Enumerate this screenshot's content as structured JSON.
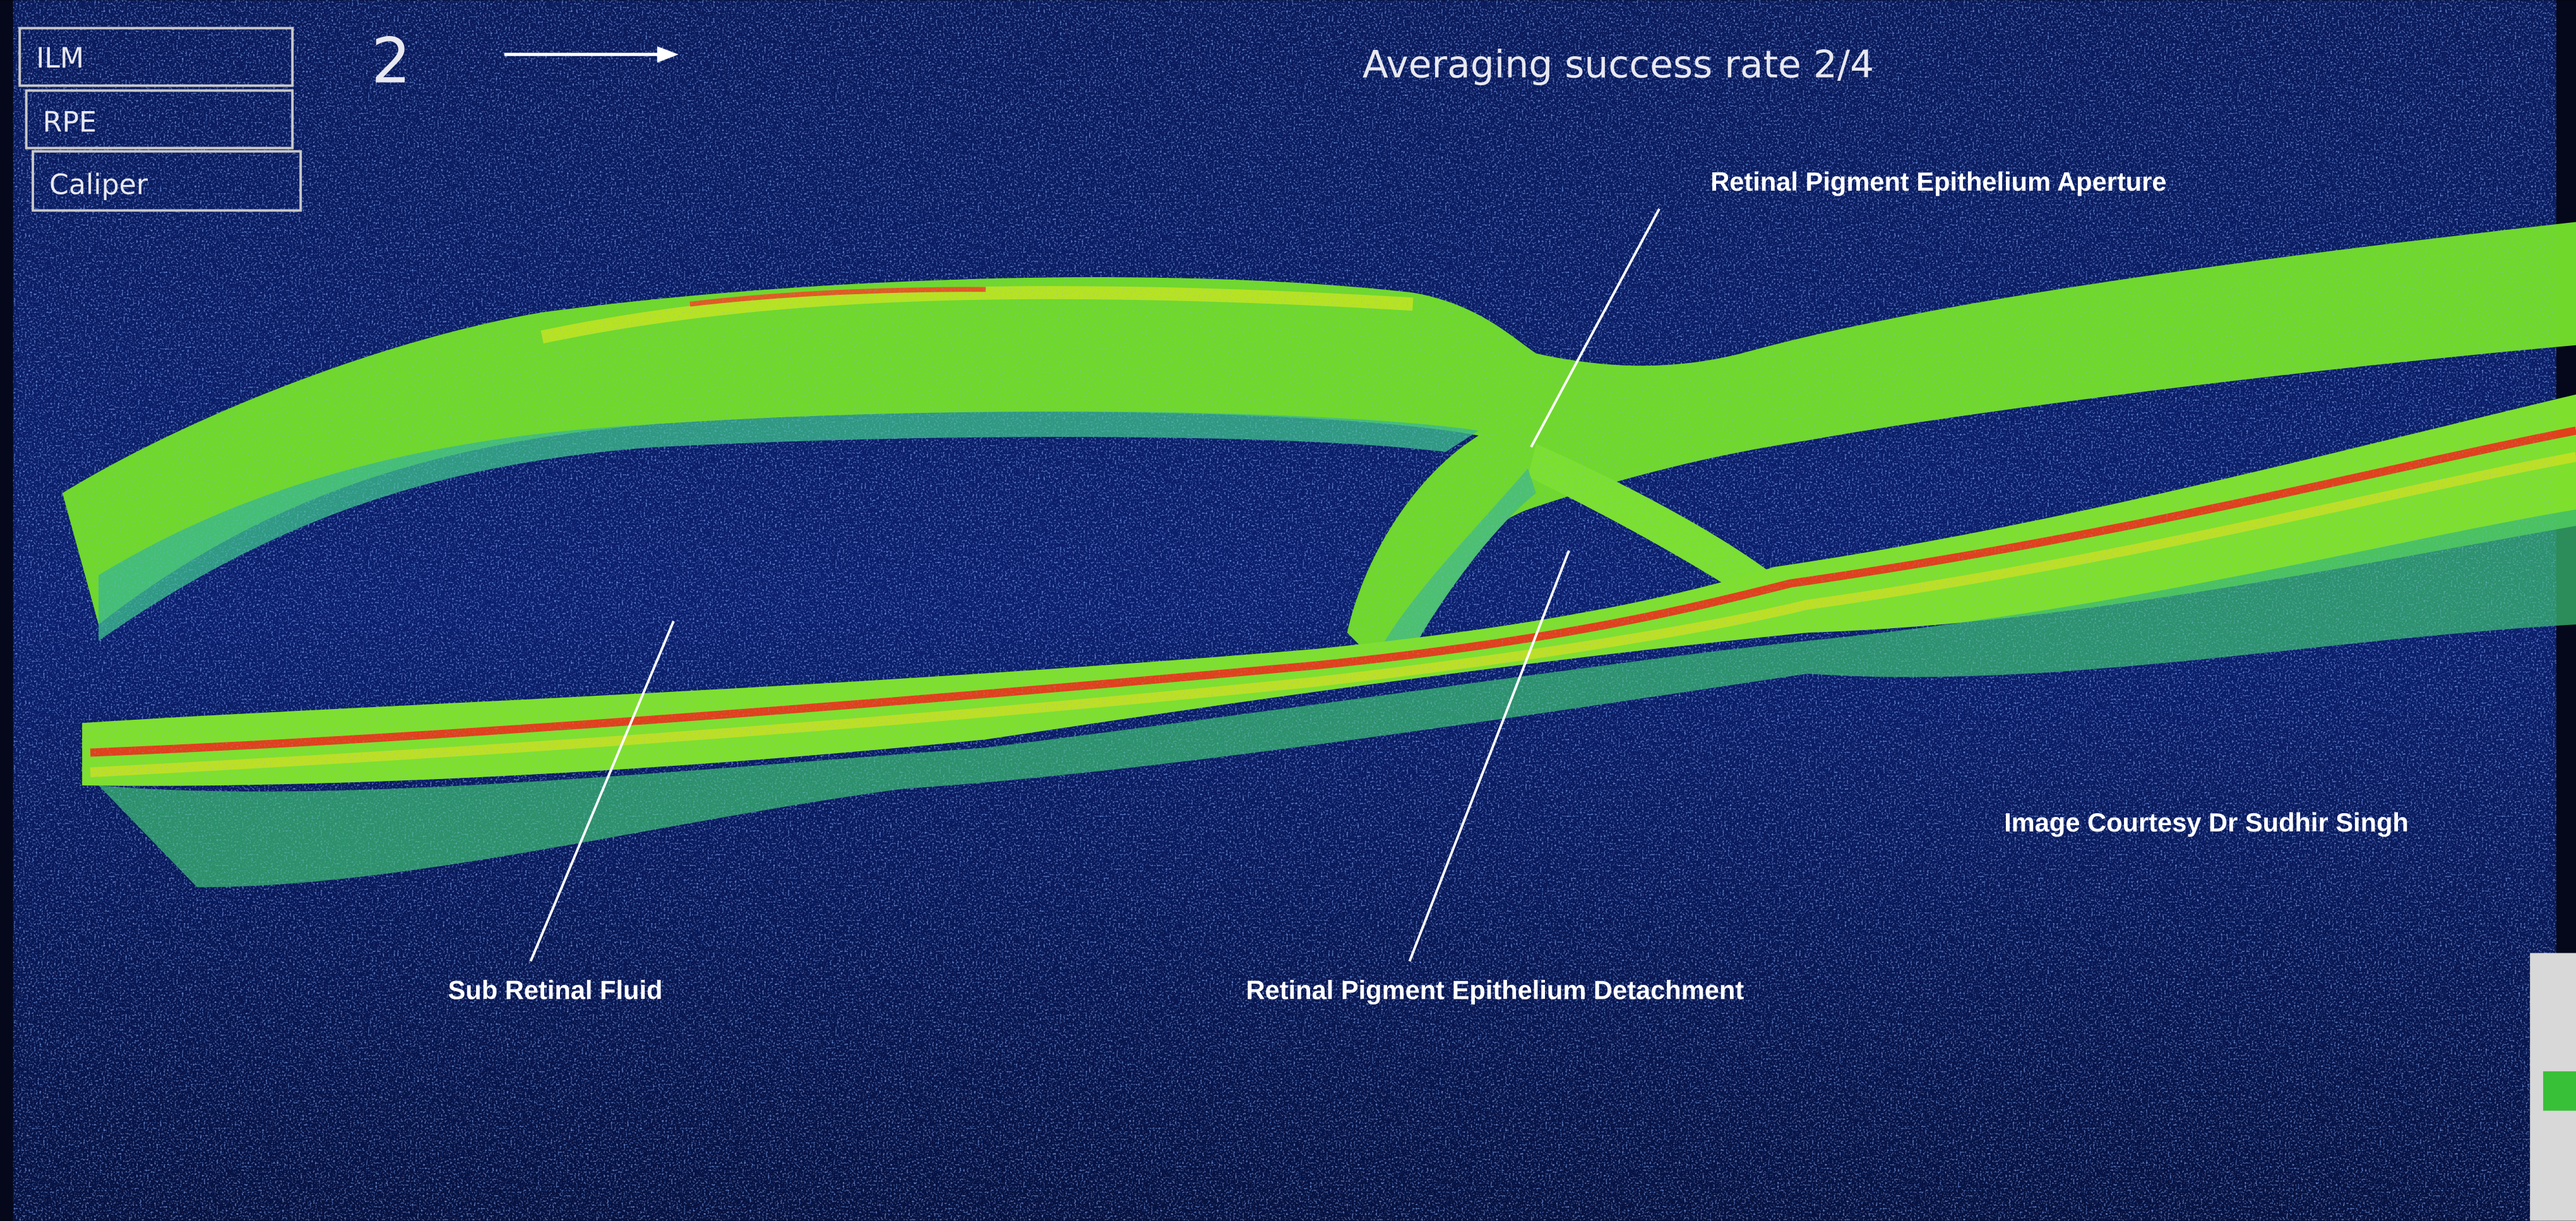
{
  "toolbar": {
    "buttons": [
      "ILM",
      "RPE",
      "Caliper"
    ]
  },
  "header": {
    "frame": "2",
    "status": "Averaging success rate 2/4"
  },
  "annotations": {
    "aperture": "Retinal Pigment Epithelium Aperture",
    "fluid": "Sub Retinal Fluid",
    "detachment": "Retinal Pigment Epithelium Detachment",
    "credit": "Image Courtesy Dr Sudhir Singh"
  }
}
